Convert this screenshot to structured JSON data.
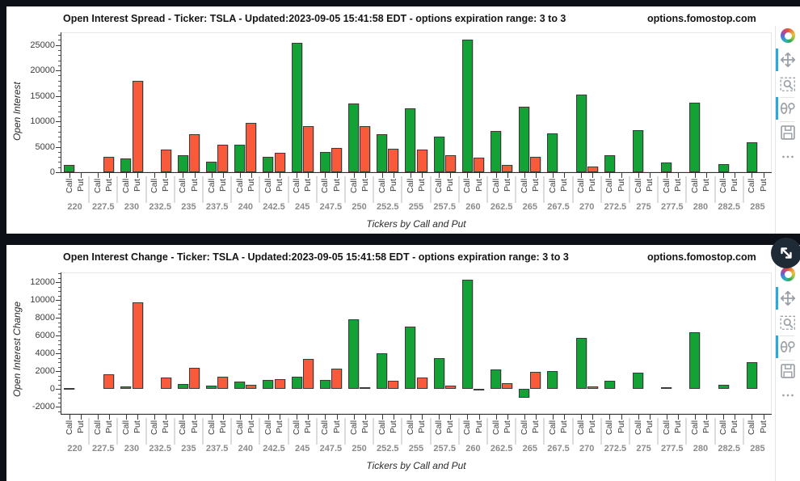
{
  "page": {
    "background_color": "#0d1117",
    "panel_color": "#ffffff"
  },
  "chart_data": [
    {
      "type": "bar",
      "title": "Open Interest Spread - Ticker: TSLA - Updated:2023-09-05 15:41:58 EDT - options expiration range: 3 to 3",
      "watermark": "options.fomostop.com",
      "xlabel": "Tickers by Call and Put",
      "ylabel": "Open Interest",
      "categories": [
        "220",
        "227.5",
        "230",
        "232.5",
        "235",
        "237.5",
        "240",
        "242.5",
        "245",
        "247.5",
        "250",
        "252.5",
        "255",
        "257.5",
        "260",
        "262.5",
        "265",
        "267.5",
        "270",
        "272.5",
        "275",
        "277.5",
        "280",
        "282.5",
        "285"
      ],
      "sub_categories": [
        "Call",
        "Put"
      ],
      "series": [
        {
          "name": "Call",
          "color": "#12a236",
          "values": [
            1400,
            0,
            2700,
            0,
            3400,
            2000,
            5400,
            3000,
            25400,
            3900,
            13500,
            7400,
            12500,
            7000,
            26100,
            8100,
            12800,
            7600,
            15200,
            3400,
            8200,
            1900,
            13600,
            1600,
            5900
          ]
        },
        {
          "name": "Put",
          "color": "#f85a3b",
          "values": [
            0,
            3000,
            17900,
            4400,
            7500,
            5400,
            9700,
            3800,
            9000,
            4700,
            9100,
            4600,
            4500,
            3400,
            2900,
            1500,
            3000,
            0,
            1100,
            0,
            0,
            0,
            0,
            0,
            0
          ]
        }
      ],
      "ylim": [
        0,
        27500
      ],
      "yticks": [
        0,
        5000,
        10000,
        15000,
        20000,
        25000
      ],
      "minor_tick_step": 1000,
      "grid": false,
      "legend": "none"
    },
    {
      "type": "bar",
      "title": "Open Interest Change - Ticker: TSLA - Updated:2023-09-05 15:41:58 EDT - options expiration range: 3 to 3",
      "watermark": "options.fomostop.com",
      "xlabel": "Tickers by Call and Put",
      "ylabel": "Open Interest Change",
      "categories": [
        "220",
        "227.5",
        "230",
        "232.5",
        "235",
        "237.5",
        "240",
        "242.5",
        "245",
        "247.5",
        "250",
        "252.5",
        "255",
        "257.5",
        "260",
        "262.5",
        "265",
        "267.5",
        "270",
        "272.5",
        "275",
        "277.5",
        "280",
        "282.5",
        "285"
      ],
      "sub_categories": [
        "Call",
        "Put"
      ],
      "series": [
        {
          "name": "Call",
          "color": "#12a236",
          "values": [
            120,
            0,
            300,
            0,
            550,
            400,
            800,
            1000,
            1400,
            1000,
            7800,
            4000,
            7000,
            3450,
            12300,
            2200,
            -1000,
            2050,
            5700,
            950,
            1800,
            180,
            6400,
            500,
            3000
          ]
        },
        {
          "name": "Put",
          "color": "#f85a3b",
          "values": [
            0,
            1650,
            9700,
            1250,
            2400,
            1350,
            500,
            1100,
            3350,
            2250,
            200,
            900,
            1250,
            420,
            -80,
            650,
            1950,
            0,
            300,
            0,
            0,
            0,
            0,
            0,
            0
          ]
        }
      ],
      "ylim": [
        -2800,
        13100
      ],
      "yticks": [
        -2000,
        0,
        2000,
        4000,
        6000,
        8000,
        10000,
        12000
      ],
      "minor_tick_step": 500,
      "grid": false,
      "legend": "none"
    }
  ],
  "ui": {
    "toolbar": {
      "active_indicator_color": "#2aa9dd",
      "icon_color": "#9aa0a6",
      "tools": [
        {
          "name": "pan-tool",
          "active": true
        },
        {
          "name": "box-zoom-tool",
          "active": false
        },
        {
          "name": "wheel-zoom-tool",
          "active": true
        },
        {
          "name": "save-tool",
          "active": false
        },
        {
          "name": "more-tool",
          "active": false
        }
      ]
    },
    "fullscreen_button": {
      "icon": "expand-icon",
      "panel": "bottom"
    }
  }
}
